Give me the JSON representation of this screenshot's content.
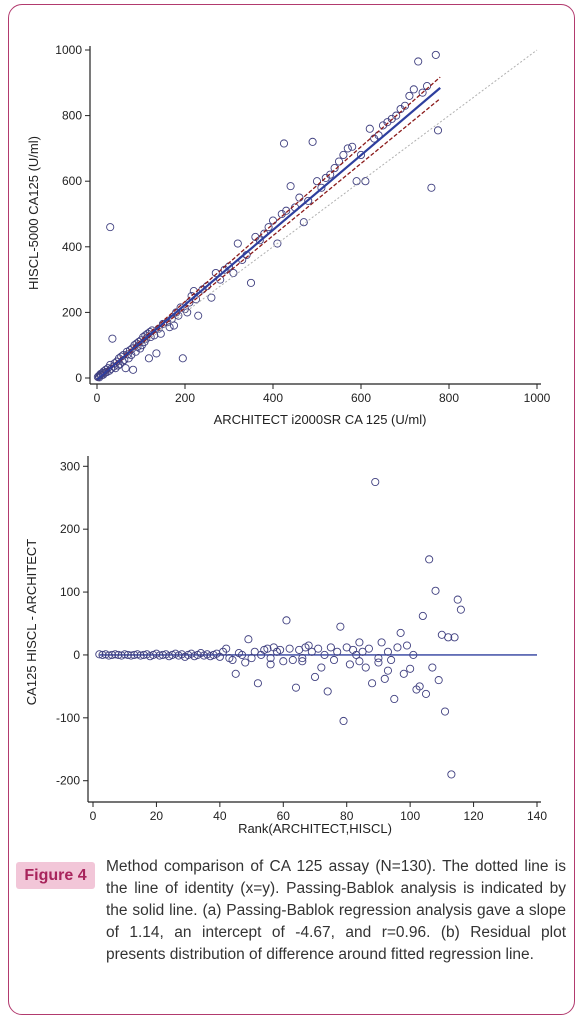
{
  "figure": {
    "label": "Figure 4",
    "caption": "Method comparison of CA 125 assay (N=130). The dotted line is the line of identity (x=y). Passing-Bablok analysis is indicated by the solid line. (a) Passing-Bablok regression analysis gave a slope of 1.14, an intercept of -4.67, and r=0.96. (b) Residual plot presents distribution of difference around fitted regression line."
  },
  "colors": {
    "frame": "#b23a6e",
    "label_bg": "#f2c6d8",
    "label_text": "#a8245c",
    "regression": "#2e3f9e",
    "ci": "#8b1a1a",
    "identity": "#b0b0b0",
    "points": "#404080"
  },
  "chart_data": [
    {
      "type": "scatter",
      "id": "a",
      "title": "",
      "xlabel": "ARCHITECT i2000SR CA 125 (U/ml)",
      "ylabel": "HISCL-5000 CA125 (U/ml)",
      "xlim": [
        0,
        1000
      ],
      "ylim": [
        0,
        1000
      ],
      "xticks": [
        0,
        200,
        400,
        600,
        800,
        1000
      ],
      "yticks": [
        0,
        200,
        400,
        600,
        800,
        1000
      ],
      "grid": false,
      "regression": {
        "slope": 1.14,
        "intercept": -4.67,
        "x_range": [
          0,
          780
        ]
      },
      "ci_lower": {
        "slope": 1.1,
        "intercept": -6,
        "x_range": [
          0,
          780
        ]
      },
      "ci_upper": {
        "slope": 1.18,
        "intercept": -3,
        "x_range": [
          0,
          780
        ]
      },
      "identity": {
        "x_range": [
          0,
          1000
        ]
      },
      "points": [
        [
          2,
          3
        ],
        [
          4,
          6
        ],
        [
          5,
          2
        ],
        [
          7,
          9
        ],
        [
          8,
          12
        ],
        [
          10,
          8
        ],
        [
          12,
          15
        ],
        [
          14,
          10
        ],
        [
          15,
          20
        ],
        [
          18,
          16
        ],
        [
          20,
          25
        ],
        [
          22,
          18
        ],
        [
          25,
          30
        ],
        [
          28,
          22
        ],
        [
          30,
          40
        ],
        [
          32,
          28
        ],
        [
          35,
          120
        ],
        [
          38,
          35
        ],
        [
          40,
          45
        ],
        [
          42,
          30
        ],
        [
          45,
          50
        ],
        [
          48,
          38
        ],
        [
          50,
          60
        ],
        [
          52,
          42
        ],
        [
          55,
          65
        ],
        [
          58,
          50
        ],
        [
          60,
          70
        ],
        [
          62,
          55
        ],
        [
          65,
          30
        ],
        [
          68,
          80
        ],
        [
          70,
          72
        ],
        [
          72,
          60
        ],
        [
          75,
          85
        ],
        [
          78,
          70
        ],
        [
          80,
          90
        ],
        [
          82,
          25
        ],
        [
          85,
          100
        ],
        [
          88,
          80
        ],
        [
          90,
          105
        ],
        [
          92,
          95
        ],
        [
          95,
          110
        ],
        [
          98,
          90
        ],
        [
          100,
          115
        ],
        [
          102,
          100
        ],
        [
          105,
          125
        ],
        [
          108,
          110
        ],
        [
          110,
          130
        ],
        [
          112,
          120
        ],
        [
          115,
          135
        ],
        [
          118,
          60
        ],
        [
          120,
          140
        ],
        [
          122,
          125
        ],
        [
          125,
          145
        ],
        [
          130,
          130
        ],
        [
          135,
          75
        ],
        [
          140,
          150
        ],
        [
          145,
          135
        ],
        [
          150,
          165
        ],
        [
          160,
          170
        ],
        [
          165,
          155
        ],
        [
          170,
          180
        ],
        [
          175,
          160
        ],
        [
          180,
          200
        ],
        [
          185,
          190
        ],
        [
          190,
          215
        ],
        [
          195,
          60
        ],
        [
          200,
          210
        ],
        [
          205,
          200
        ],
        [
          210,
          230
        ],
        [
          215,
          250
        ],
        [
          220,
          265
        ],
        [
          225,
          240
        ],
        [
          230,
          190
        ],
        [
          240,
          270
        ],
        [
          250,
          280
        ],
        [
          260,
          245
        ],
        [
          270,
          320
        ],
        [
          280,
          300
        ],
        [
          290,
          330
        ],
        [
          300,
          340
        ],
        [
          310,
          320
        ],
        [
          320,
          410
        ],
        [
          330,
          360
        ],
        [
          340,
          375
        ],
        [
          350,
          290
        ],
        [
          360,
          430
        ],
        [
          370,
          420
        ],
        [
          380,
          440
        ],
        [
          390,
          460
        ],
        [
          400,
          480
        ],
        [
          410,
          410
        ],
        [
          420,
          500
        ],
        [
          425,
          715
        ],
        [
          430,
          510
        ],
        [
          440,
          585
        ],
        [
          450,
          520
        ],
        [
          460,
          550
        ],
        [
          470,
          475
        ],
        [
          480,
          540
        ],
        [
          490,
          720
        ],
        [
          500,
          600
        ],
        [
          510,
          580
        ],
        [
          520,
          610
        ],
        [
          530,
          620
        ],
        [
          540,
          640
        ],
        [
          550,
          660
        ],
        [
          560,
          680
        ],
        [
          570,
          700
        ],
        [
          580,
          705
        ],
        [
          590,
          600
        ],
        [
          600,
          680
        ],
        [
          610,
          600
        ],
        [
          620,
          760
        ],
        [
          630,
          730
        ],
        [
          640,
          740
        ],
        [
          650,
          770
        ],
        [
          660,
          780
        ],
        [
          670,
          790
        ],
        [
          680,
          800
        ],
        [
          690,
          820
        ],
        [
          700,
          830
        ],
        [
          710,
          860
        ],
        [
          720,
          880
        ],
        [
          730,
          965
        ],
        [
          740,
          870
        ],
        [
          750,
          890
        ],
        [
          760,
          580
        ],
        [
          770,
          985
        ],
        [
          775,
          755
        ],
        [
          30,
          460
        ]
      ]
    },
    {
      "type": "scatter",
      "id": "b",
      "title": "",
      "xlabel": "Rank(ARCHITECT,HISCL)",
      "ylabel": "CA125 HISCL - ARCHITECT",
      "xlim": [
        0,
        140
      ],
      "ylim": [
        -210,
        310
      ],
      "xticks": [
        0,
        20,
        40,
        60,
        80,
        100,
        120,
        140
      ],
      "yticks": [
        300,
        200,
        100,
        0,
        -100,
        -200
      ],
      "grid": false,
      "zero_line": {
        "y": 0,
        "x_range": [
          2,
          140
        ]
      },
      "points": [
        [
          2,
          1
        ],
        [
          3,
          0
        ],
        [
          4,
          1
        ],
        [
          5,
          -1
        ],
        [
          6,
          0
        ],
        [
          7,
          1
        ],
        [
          8,
          0
        ],
        [
          9,
          -1
        ],
        [
          10,
          1
        ],
        [
          11,
          0
        ],
        [
          12,
          -1
        ],
        [
          13,
          0
        ],
        [
          14,
          1
        ],
        [
          15,
          -1
        ],
        [
          16,
          0
        ],
        [
          17,
          1
        ],
        [
          18,
          -2
        ],
        [
          19,
          0
        ],
        [
          20,
          2
        ],
        [
          21,
          -1
        ],
        [
          22,
          0
        ],
        [
          23,
          1
        ],
        [
          24,
          -2
        ],
        [
          25,
          0
        ],
        [
          26,
          2
        ],
        [
          27,
          -1
        ],
        [
          28,
          1
        ],
        [
          29,
          -3
        ],
        [
          30,
          0
        ],
        [
          31,
          2
        ],
        [
          32,
          -2
        ],
        [
          33,
          0
        ],
        [
          34,
          3
        ],
        [
          35,
          -1
        ],
        [
          36,
          1
        ],
        [
          37,
          -2
        ],
        [
          38,
          0
        ],
        [
          39,
          2
        ],
        [
          40,
          -3
        ],
        [
          41,
          5
        ],
        [
          42,
          10
        ],
        [
          43,
          -5
        ],
        [
          44,
          -8
        ],
        [
          45,
          -30
        ],
        [
          46,
          3
        ],
        [
          47,
          0
        ],
        [
          48,
          -12
        ],
        [
          49,
          25
        ],
        [
          50,
          -5
        ],
        [
          51,
          5
        ],
        [
          52,
          -45
        ],
        [
          53,
          0
        ],
        [
          54,
          8
        ],
        [
          55,
          10
        ],
        [
          56,
          -5
        ],
        [
          57,
          12
        ],
        [
          58,
          5
        ],
        [
          59,
          8
        ],
        [
          60,
          -10
        ],
        [
          61,
          55
        ],
        [
          62,
          10
        ],
        [
          63,
          -8
        ],
        [
          64,
          -52
        ],
        [
          65,
          8
        ],
        [
          66,
          -5
        ],
        [
          67,
          12
        ],
        [
          68,
          15
        ],
        [
          69,
          5
        ],
        [
          70,
          -35
        ],
        [
          71,
          10
        ],
        [
          72,
          -20
        ],
        [
          73,
          0
        ],
        [
          74,
          -58
        ],
        [
          75,
          12
        ],
        [
          76,
          -8
        ],
        [
          77,
          5
        ],
        [
          78,
          45
        ],
        [
          79,
          -105
        ],
        [
          80,
          12
        ],
        [
          81,
          -15
        ],
        [
          82,
          8
        ],
        [
          83,
          0
        ],
        [
          84,
          -10
        ],
        [
          85,
          5
        ],
        [
          86,
          -20
        ],
        [
          87,
          10
        ],
        [
          88,
          -45
        ],
        [
          89,
          275
        ],
        [
          90,
          -12
        ],
        [
          91,
          20
        ],
        [
          92,
          -38
        ],
        [
          93,
          5
        ],
        [
          94,
          -8
        ],
        [
          95,
          -70
        ],
        [
          96,
          12
        ],
        [
          97,
          35
        ],
        [
          98,
          -30
        ],
        [
          99,
          15
        ],
        [
          100,
          -22
        ],
        [
          101,
          0
        ],
        [
          102,
          -55
        ],
        [
          103,
          -50
        ],
        [
          104,
          62
        ],
        [
          105,
          -62
        ],
        [
          106,
          152
        ],
        [
          107,
          -20
        ],
        [
          108,
          102
        ],
        [
          109,
          -40
        ],
        [
          110,
          32
        ],
        [
          111,
          -90
        ],
        [
          112,
          28
        ],
        [
          113,
          -190
        ],
        [
          114,
          28
        ],
        [
          115,
          88
        ],
        [
          116,
          72
        ],
        [
          56,
          -15
        ],
        [
          66,
          -10
        ],
        [
          84,
          20
        ],
        [
          90,
          -5
        ],
        [
          93,
          -25
        ]
      ]
    }
  ]
}
